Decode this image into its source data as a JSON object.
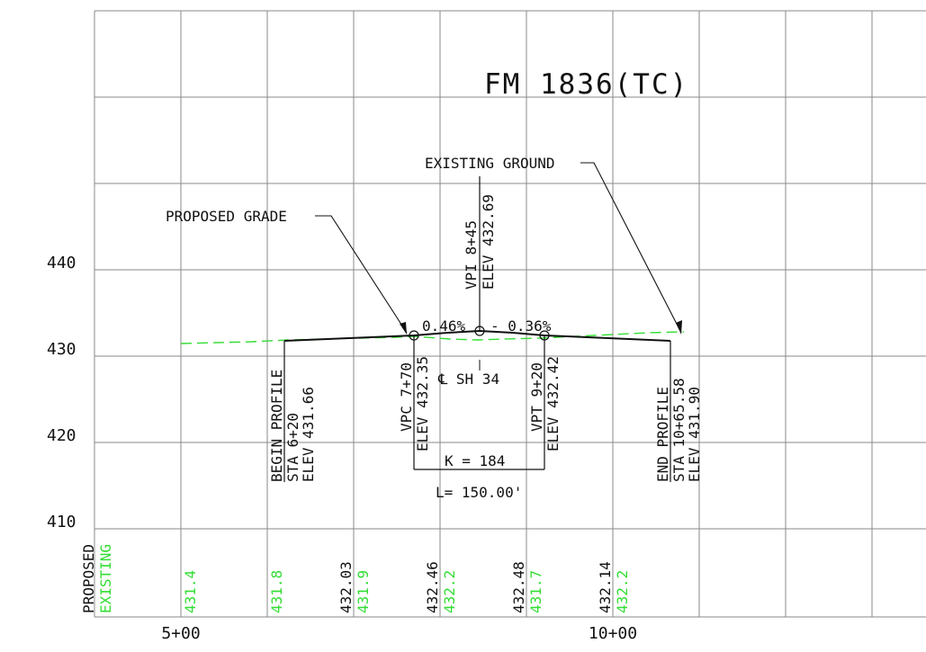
{
  "title": "FM 1836(TC)",
  "y_axis_labels": [
    "440",
    "430",
    "420",
    "410"
  ],
  "x_axis_labels": [
    "5+00",
    "10+00"
  ],
  "annotations": {
    "proposed_grade": "PROPOSED GRADE",
    "existing_ground": "EXISTING GROUND",
    "vpi_station": "VPI 8+45",
    "vpi_elev": "ELEV 432.69",
    "grade_in": "0.46%",
    "grade_out": "- 0.36%",
    "begin_profile": "BEGIN PROFILE",
    "begin_sta": "STA 6+20",
    "begin_elev": "ELEV 431.66",
    "vpc_station": "VPC 7+70",
    "vpc_elev": "ELEV 432.35",
    "centerline": "℄ SH 34",
    "vpt_station": "VPT 9+20",
    "vpt_elev": "ELEV 432.42",
    "end_profile": "END PROFILE",
    "end_sta": "STA 10+65.58",
    "end_elev": "ELEV 431.90",
    "k_value": "K = 184",
    "curve_length": "L= 150.00'"
  },
  "legend": {
    "proposed": "PROPOSED",
    "existing": "EXISTING"
  },
  "elevation_table": [
    {
      "proposed": "",
      "existing": "431.4"
    },
    {
      "proposed": "",
      "existing": "431.8"
    },
    {
      "proposed": "432.03",
      "existing": "431.9"
    },
    {
      "proposed": "432.46",
      "existing": "432.2"
    },
    {
      "proposed": "432.48",
      "existing": "431.7"
    },
    {
      "proposed": "432.14",
      "existing": "432.2"
    }
  ],
  "colors": {
    "existing_ground": "#33dd33",
    "proposed_grade": "#111111",
    "grid": "#8a8a8a"
  }
}
